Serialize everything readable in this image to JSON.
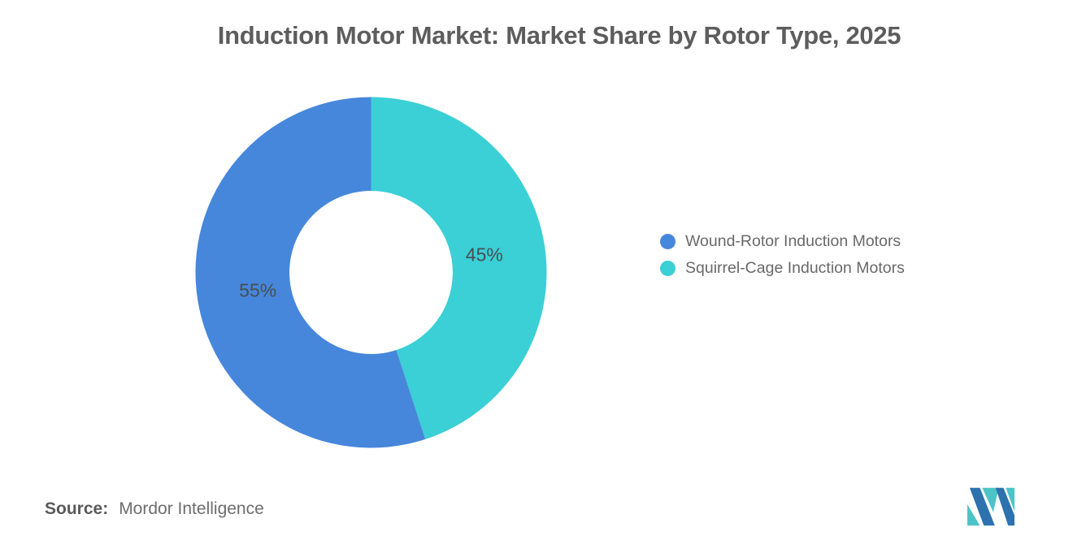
{
  "header": {
    "title": "Induction Motor Market: Market Share by Rotor Type, 2025"
  },
  "chart_data": {
    "type": "pie",
    "donut": true,
    "title": "Induction Motor Market: Market Share by Rotor Type, 2025",
    "unit": "%",
    "start_angle_deg_from_top": 0,
    "direction": "clockwise",
    "inner_radius_ratio": 0.465,
    "label_radius_ratio": 0.653,
    "legend_position": "right",
    "slices_clockwise_from_top": [
      {
        "label": "Squirrel-Cage Induction Motors",
        "value": 45,
        "display": "45%",
        "color": "#3bcfd6"
      },
      {
        "label": "Wound-Rotor Induction Motors",
        "value": 55,
        "display": "55%",
        "color": "#4687db"
      }
    ]
  },
  "legend": {
    "items": [
      {
        "label": "Wound-Rotor Induction Motors",
        "color": "#4687db"
      },
      {
        "label": "Squirrel-Cage Induction Motors",
        "color": "#3bcfd6"
      }
    ]
  },
  "footer": {
    "source_label": "Source:",
    "source_value": "Mordor Intelligence"
  },
  "logo": {
    "name": "mordor-intelligence-logo",
    "colors": {
      "blue": "#2d71ae",
      "teal": "#4cc4c7"
    }
  }
}
